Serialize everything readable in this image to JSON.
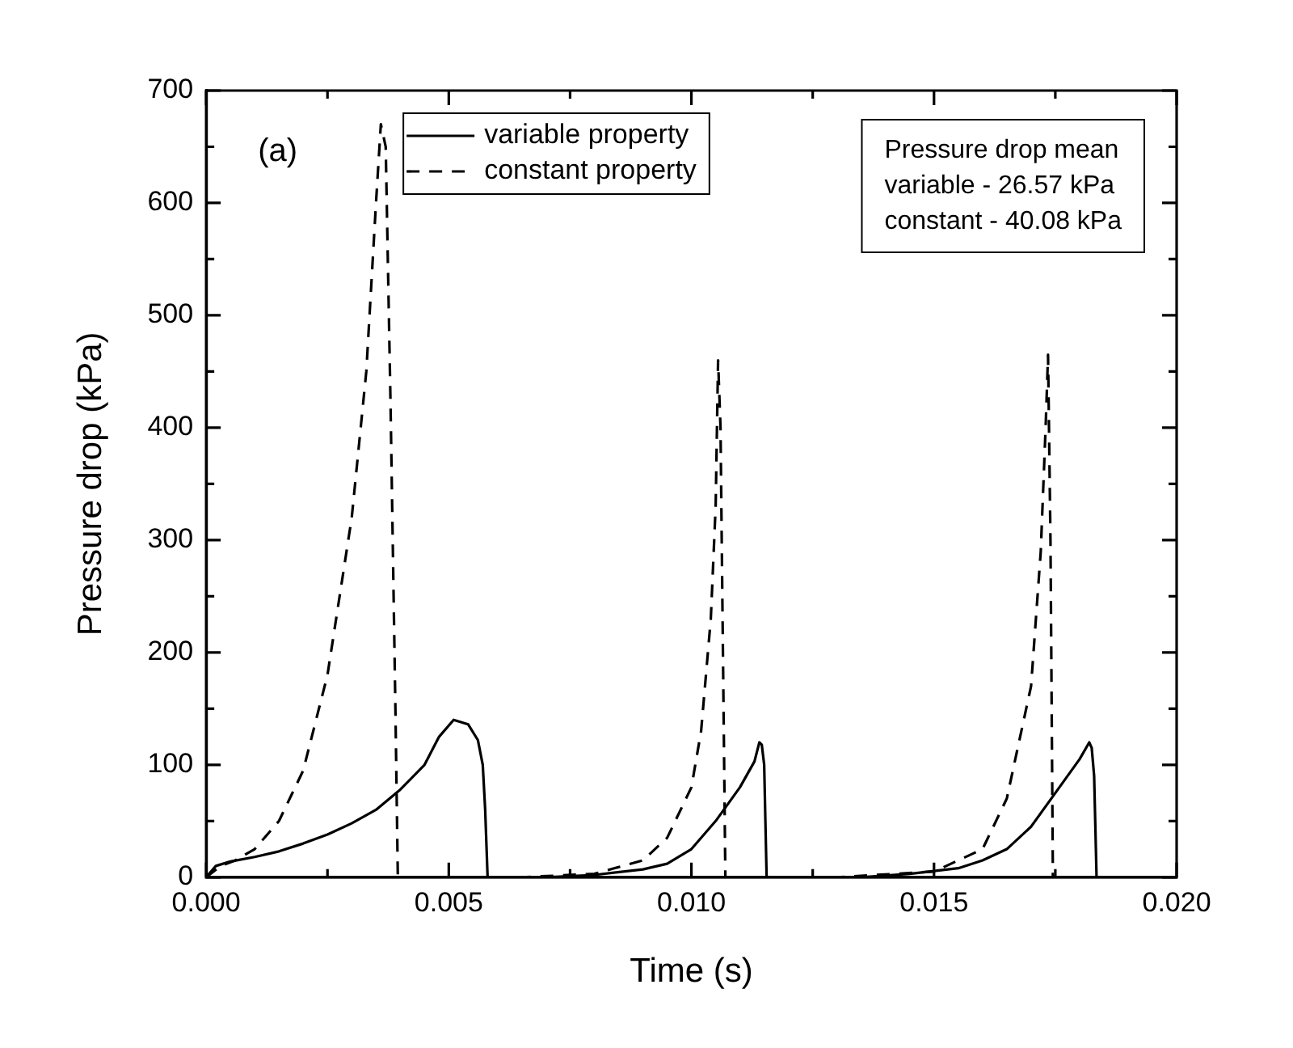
{
  "chart_data": {
    "type": "line",
    "xlabel": "Time (s)",
    "ylabel": "Pressure drop (kPa)",
    "xlim": [
      0,
      0.02
    ],
    "ylim": [
      0,
      700
    ],
    "xticks": [
      {
        "value": 0,
        "label": "0.000"
      },
      {
        "value": 0.0025,
        "label": null
      },
      {
        "value": 0.005,
        "label": "0.005"
      },
      {
        "value": 0.0075,
        "label": null
      },
      {
        "value": 0.01,
        "label": "0.010"
      },
      {
        "value": 0.0125,
        "label": null
      },
      {
        "value": 0.015,
        "label": "0.015"
      },
      {
        "value": 0.0175,
        "label": null
      },
      {
        "value": 0.02,
        "label": "0.020"
      }
    ],
    "yticks": [
      0,
      {
        "value": 50,
        "label": null
      },
      100,
      {
        "value": 150,
        "label": null
      },
      200,
      {
        "value": 250,
        "label": null
      },
      300,
      {
        "value": 350,
        "label": null
      },
      400,
      {
        "value": 450,
        "label": null
      },
      500,
      {
        "value": 550,
        "label": null
      },
      600,
      {
        "value": 650,
        "label": null
      },
      700
    ],
    "grid": false,
    "legend": "top left",
    "marker": "none",
    "annotations": [
      "(a)",
      "Pressure drop mean\nvariable - 26.57 kPa\nconstant - 40.08 kPa"
    ],
    "series": [
      {
        "name": "variable property",
        "color": "#000000",
        "line_style": "solid",
        "x": [
          0,
          0.0002,
          0.0005,
          0.001,
          0.0015,
          0.002,
          0.0025,
          0.003,
          0.0035,
          0.004,
          0.0045,
          0.0048,
          0.0051,
          0.0054,
          0.0056,
          0.0057,
          0.00575,
          0.0058,
          0.007,
          0.008,
          0.009,
          0.0095,
          0.01,
          0.0105,
          0.011,
          0.0113,
          0.0114,
          0.01145,
          0.0115,
          0.01155,
          0.0135,
          0.0145,
          0.0155,
          0.016,
          0.0165,
          0.017,
          0.0175,
          0.018,
          0.0182,
          0.01825,
          0.0183,
          0.01835,
          0.02
        ],
        "values": [
          0,
          10,
          14,
          18,
          23,
          30,
          38,
          48,
          60,
          78,
          100,
          125,
          140,
          136,
          122,
          100,
          60,
          0,
          0,
          2,
          7,
          12,
          25,
          50,
          80,
          103,
          120,
          118,
          100,
          0,
          0,
          3,
          8,
          15,
          25,
          45,
          75,
          105,
          120,
          115,
          90,
          0,
          0
        ]
      },
      {
        "name": "constant property",
        "color": "#000000",
        "line_style": "dashed",
        "x": [
          0,
          0.0003,
          0.0006,
          0.001,
          0.0015,
          0.002,
          0.0025,
          0.003,
          0.0033,
          0.0035,
          0.0036,
          0.0037,
          0.0038,
          0.0039,
          0.00395,
          0.0065,
          0.008,
          0.009,
          0.0095,
          0.01,
          0.0102,
          0.0104,
          0.0105,
          0.01055,
          0.0106,
          0.0107,
          0.013,
          0.015,
          0.016,
          0.0165,
          0.017,
          0.0172,
          0.0173,
          0.01735,
          0.0174,
          0.01745,
          0.02
        ],
        "values": [
          0,
          10,
          15,
          25,
          50,
          95,
          180,
          320,
          450,
          600,
          670,
          650,
          420,
          150,
          0,
          0,
          3,
          15,
          35,
          80,
          130,
          230,
          330,
          460,
          400,
          0,
          0,
          5,
          25,
          70,
          170,
          290,
          400,
          465,
          300,
          0,
          0
        ]
      }
    ]
  }
}
